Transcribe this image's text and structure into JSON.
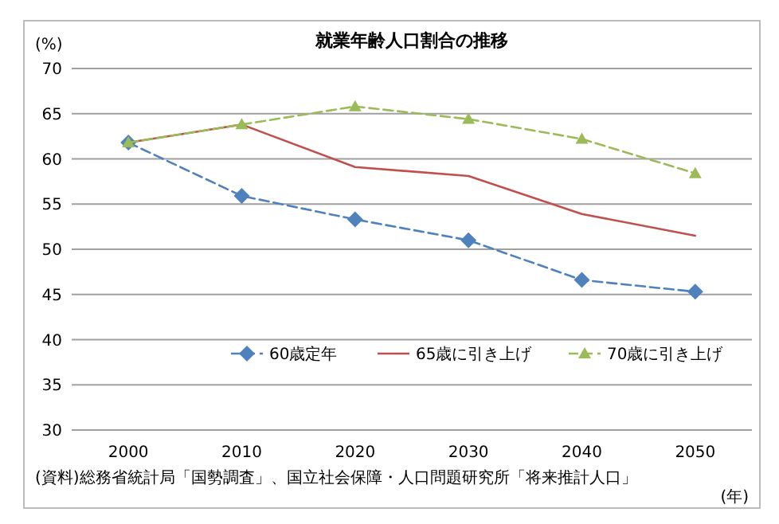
{
  "chart_data": {
    "type": "line",
    "title": "就業年齢人口割合の推移",
    "ylabel": "(%)",
    "xlabel": "(年)",
    "categories": [
      "2000",
      "2010",
      "2020",
      "2030",
      "2040",
      "2050"
    ],
    "series": [
      {
        "name": "60歳定年",
        "color": "#4f81bd",
        "values": [
          61.8,
          55.9,
          53.3,
          51.0,
          46.6,
          45.3
        ],
        "marker": "diamond",
        "line_style": "dashed"
      },
      {
        "name": "65歳に引き上げ",
        "color": "#c0504d",
        "values": [
          61.8,
          63.8,
          59.1,
          58.1,
          53.9,
          51.5
        ],
        "marker": "none",
        "line_style": "solid"
      },
      {
        "name": "70歳に引き上げ",
        "color": "#9bbb59",
        "values": [
          61.8,
          63.8,
          65.8,
          64.4,
          62.2,
          58.4
        ],
        "marker": "triangle",
        "line_style": "dashed"
      }
    ],
    "ylim": [
      30,
      70
    ],
    "yticks": [
      30,
      35,
      40,
      45,
      50,
      55,
      60,
      65,
      70
    ],
    "grid": "y",
    "legend": "bottom",
    "annotations": [
      "(資料)総務省統計局「国勢調査」、国立社会保障・人口問題研究所「将来推計人口」"
    ]
  }
}
